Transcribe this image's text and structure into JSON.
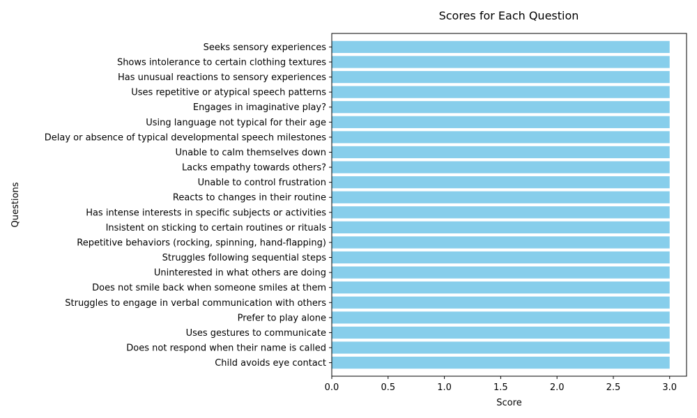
{
  "chart_data": {
    "type": "bar",
    "orientation": "horizontal",
    "title": "Scores for Each Question",
    "xlabel": "Score",
    "ylabel": "Questions",
    "xlim": [
      0,
      3.15
    ],
    "xticks": [
      0,
      0.5,
      1,
      1.5,
      2,
      2.5,
      3
    ],
    "xtick_labels": [
      "0.0",
      "0.5",
      "1.0",
      "1.5",
      "2.0",
      "2.5",
      "3.0"
    ],
    "bar_color": "#87CEEB",
    "grid": false,
    "categories": [
      "Child avoids eye contact",
      "Does not respond when their name is called",
      "Uses gestures to communicate",
      "Prefer to play alone",
      "Struggles to engage in verbal communication with others",
      "Does not smile back when someone smiles at them",
      "Uninterested in what others are doing",
      "Struggles following sequential steps",
      "Repetitive behaviors (rocking, spinning, hand-flapping)",
      "Insistent on sticking to certain routines or rituals",
      "Has intense interests in specific subjects or activities",
      "Reacts to changes in their routine",
      "Unable to control frustration",
      "Lacks empathy towards others?",
      "Unable to calm themselves down",
      "Delay or absence of typical developmental speech milestones",
      "Using language not typical for their age",
      "Engages in imaginative play?",
      "Uses repetitive or atypical speech patterns",
      "Has unusual reactions to sensory experiences",
      "Shows intolerance to certain clothing textures",
      "Seeks sensory experiences"
    ],
    "values": [
      3,
      3,
      3,
      3,
      3,
      3,
      3,
      3,
      3,
      3,
      3,
      3,
      3,
      3,
      3,
      3,
      3,
      3,
      3,
      3,
      3,
      3
    ]
  }
}
